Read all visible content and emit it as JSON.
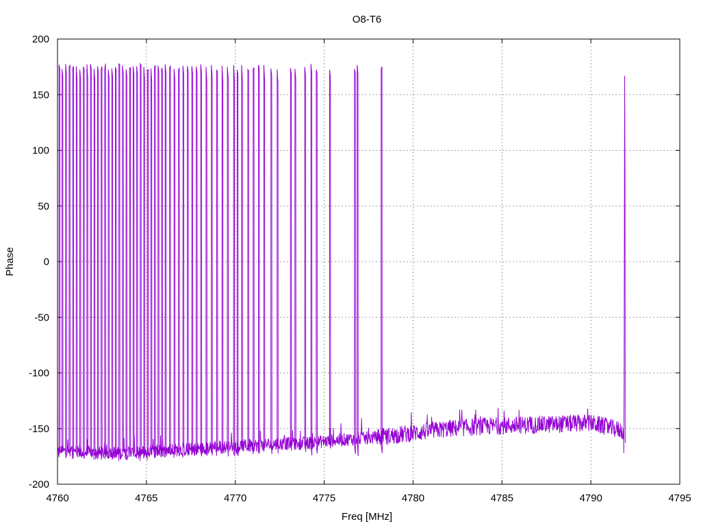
{
  "chart_data": {
    "type": "line",
    "title": "O8-T6",
    "xlabel": "Freq [MHz]",
    "ylabel": "Phase",
    "xlim": [
      4760,
      4795
    ],
    "ylim": [
      -200,
      200
    ],
    "xticks": [
      4760,
      4765,
      4770,
      4775,
      4780,
      4785,
      4790,
      4795
    ],
    "yticks": [
      -200,
      -150,
      -100,
      -50,
      0,
      50,
      100,
      150,
      200
    ],
    "xtick_labels": [
      "4760",
      "4765",
      "4770",
      "4775",
      "4780",
      "4785",
      "4790",
      "4795"
    ],
    "ytick_labels": [
      "-200",
      "-150",
      "-100",
      "-50",
      "0",
      "50",
      "100",
      "150",
      "200"
    ],
    "grid": true,
    "legend": "none",
    "series": [
      {
        "color": "#9400d3",
        "x_range": [
          4760.0,
          4792.1
        ],
        "low_band_points": [
          {
            "x": 4760.0,
            "y": -170
          },
          {
            "x": 4762.0,
            "y": -172
          },
          {
            "x": 4764.0,
            "y": -172
          },
          {
            "x": 4766.0,
            "y": -170
          },
          {
            "x": 4768.0,
            "y": -168
          },
          {
            "x": 4770.0,
            "y": -166
          },
          {
            "x": 4772.0,
            "y": -164
          },
          {
            "x": 4774.0,
            "y": -163
          },
          {
            "x": 4776.0,
            "y": -160
          },
          {
            "x": 4778.0,
            "y": -158
          },
          {
            "x": 4780.0,
            "y": -154
          },
          {
            "x": 4782.0,
            "y": -150
          },
          {
            "x": 4784.0,
            "y": -148
          },
          {
            "x": 4786.0,
            "y": -147
          },
          {
            "x": 4788.0,
            "y": -146
          },
          {
            "x": 4790.0,
            "y": -145
          },
          {
            "x": 4791.8,
            "y": -152
          }
        ],
        "phase_wraps_x": [
          4760.08,
          4760.25,
          4760.45,
          4760.65,
          4760.85,
          4761.05,
          4761.25,
          4761.45,
          4761.65,
          4761.85,
          4762.05,
          4762.25,
          4762.45,
          4762.65,
          4762.85,
          4763.05,
          4763.25,
          4763.45,
          4763.65,
          4763.85,
          4764.05,
          4764.25,
          4764.45,
          4764.65,
          4764.85,
          4765.05,
          4765.25,
          4765.45,
          4765.65,
          4765.85,
          4766.05,
          4766.3,
          4766.55,
          4766.8,
          4767.05,
          4767.3,
          4767.55,
          4767.8,
          4768.05,
          4768.35,
          4768.65,
          4768.95,
          4769.25,
          4769.55,
          4769.9,
          4770.1,
          4770.35,
          4770.7,
          4771.0,
          4771.3,
          4771.6,
          4772.0,
          4772.35,
          4773.1,
          4773.35,
          4773.9,
          4774.25,
          4774.55,
          4775.3,
          4776.7,
          4776.85,
          4778.2
        ],
        "late_wrap": {
          "x": 4791.9,
          "y_peak": 167
        }
      }
    ]
  }
}
